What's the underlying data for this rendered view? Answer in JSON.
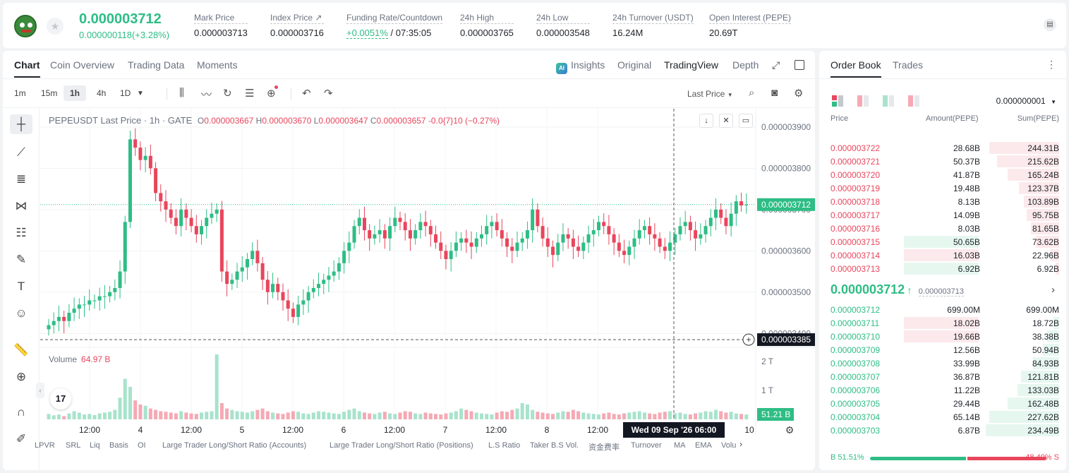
{
  "ticker": {
    "last_price": "0.000003712",
    "change": "0.000000118(+3.28%)",
    "stats": [
      {
        "label": "Mark Price",
        "value": "0.000003713"
      },
      {
        "label": "Index Price ↗",
        "value": "0.000003716"
      },
      {
        "label": "Funding Rate/Countdown",
        "value_green": "+0.0051%",
        "value": " / 07:35:05"
      },
      {
        "label": "24h High",
        "value": "0.000003765"
      },
      {
        "label": "24h Low",
        "value": "0.000003548"
      },
      {
        "label": "24h Turnover (USDT)",
        "value": "16.24M"
      },
      {
        "label": "Open Interest (PEPE)",
        "value": "20.69T"
      }
    ]
  },
  "chart_tabs": [
    "Chart",
    "Coin Overview",
    "Trading Data",
    "Moments"
  ],
  "view_options": {
    "insights": "Insights",
    "ai_badge": "AI",
    "original": "Original",
    "tradingview": "TradingView",
    "depth": "Depth"
  },
  "intervals": [
    "1m",
    "15m",
    "1h",
    "4h",
    "1D"
  ],
  "active_interval": "1h",
  "last_price_selector": "Last Price",
  "legend": {
    "symbol": "PEPEUSDT Last Price · 1h · GATE",
    "o_label": "O",
    "o": "0.000003667",
    "h_label": "H",
    "h": "0.000003670",
    "l_label": "L",
    "l": "0.000003647",
    "c_label": "C",
    "c": "0.000003657",
    "chg": "-0.0{7}10 (−0.27%)"
  },
  "volume_legend": {
    "label": "Volume",
    "value": "64.97 B"
  },
  "tv_logo": "17",
  "chart_data": {
    "type": "candlestick",
    "y_ticks": [
      "0.000003900",
      "0.000003800",
      "0.000003700",
      "0.000003600",
      "0.000003500",
      "0.000003400"
    ],
    "ylim": [
      3.38e-06,
      3.91e-06
    ],
    "x_ticks": [
      "12:00",
      "4",
      "12:00",
      "5",
      "12:00",
      "6",
      "12:00",
      "7",
      "12:00",
      "8",
      "12:00",
      "10"
    ],
    "last_price_label": "0.000003712",
    "last_price": 3.712e-06,
    "crosshair_price_label": "0.000003385",
    "crosshair_price": 3.385e-06,
    "crosshair_time": "Wed 09 Sep '26   06:00",
    "volume_ticks": [
      "2 T",
      "1 T"
    ],
    "volume_last_label": "51.21 B",
    "closes": [
      3.42,
      3.43,
      3.44,
      3.43,
      3.45,
      3.46,
      3.47,
      3.47,
      3.48,
      3.48,
      3.49,
      3.49,
      3.5,
      3.51,
      3.55,
      3.67,
      3.87,
      3.85,
      3.82,
      3.83,
      3.8,
      3.74,
      3.72,
      3.7,
      3.68,
      3.66,
      3.7,
      3.68,
      3.66,
      3.64,
      3.66,
      3.68,
      3.69,
      3.7,
      3.55,
      3.52,
      3.53,
      3.55,
      3.56,
      3.58,
      3.6,
      3.57,
      3.53,
      3.5,
      3.52,
      3.5,
      3.48,
      3.46,
      3.44,
      3.47,
      3.48,
      3.5,
      3.51,
      3.52,
      3.53,
      3.54,
      3.55,
      3.57,
      3.6,
      3.62,
      3.66,
      3.68,
      3.65,
      3.63,
      3.64,
      3.65,
      3.63,
      3.66,
      3.68,
      3.67,
      3.65,
      3.63,
      3.65,
      3.67,
      3.66,
      3.64,
      3.62,
      3.6,
      3.58,
      3.6,
      3.62,
      3.63,
      3.62,
      3.61,
      3.63,
      3.64,
      3.66,
      3.67,
      3.65,
      3.63,
      3.61,
      3.6,
      3.62,
      3.63,
      3.65,
      3.7,
      3.66,
      3.63,
      3.61,
      3.59,
      3.62,
      3.64,
      3.63,
      3.61,
      3.6,
      3.62,
      3.64,
      3.65,
      3.67,
      3.66,
      3.64,
      3.62,
      3.6,
      3.59,
      3.61,
      3.63,
      3.65,
      3.66,
      3.64,
      3.63,
      3.61,
      3.6,
      3.62,
      3.64,
      3.66,
      3.67,
      3.65,
      3.63,
      3.64,
      3.66,
      3.68,
      3.7,
      3.68,
      3.66,
      3.69,
      3.72,
      3.71,
      3.712
    ],
    "volumes": [
      20,
      15,
      18,
      12,
      22,
      30,
      25,
      18,
      20,
      16,
      22,
      25,
      28,
      35,
      80,
      150,
      120,
      70,
      55,
      50,
      40,
      35,
      30,
      28,
      25,
      22,
      30,
      25,
      22,
      20,
      25,
      28,
      30,
      240,
      60,
      40,
      35,
      30,
      28,
      25,
      30,
      35,
      40,
      30,
      25,
      22,
      20,
      25,
      30,
      28,
      22,
      20,
      25,
      30,
      28,
      25,
      22,
      20,
      28,
      35,
      40,
      30,
      25,
      22,
      20,
      25,
      28,
      22,
      20,
      25,
      30,
      28,
      22,
      20,
      25,
      22,
      20,
      18,
      22,
      25,
      30,
      40,
      35,
      30,
      25,
      22,
      20,
      18,
      25,
      30,
      28,
      35,
      40,
      60,
      55,
      35,
      28,
      25,
      22,
      20,
      25,
      30,
      28,
      35,
      30,
      25,
      22,
      20,
      18,
      22,
      25,
      20,
      18,
      22,
      25,
      28,
      30,
      25,
      22,
      20,
      25,
      28,
      30,
      22,
      25,
      20,
      18,
      22,
      25,
      30,
      28,
      35,
      30,
      25,
      28,
      22,
      20,
      18
    ]
  },
  "indicators": [
    "LPVR",
    "SRL",
    "Liq",
    "Basis",
    "OI",
    "Large Trader Long/Short Ratio (Accounts)",
    "Large Trader Long/Short Ratio (Positions)",
    "L.S Ratio",
    "Taker B.S Vol.",
    "资金费率",
    "Turnover",
    "MA",
    "EMA",
    "Volu"
  ],
  "orderbook": {
    "tabs": [
      "Order Book",
      "Trades"
    ],
    "precision": "0.000000001",
    "headers": {
      "price": "Price",
      "amount": "Amount(PEPE)",
      "sum": "Sum(PEPE)"
    },
    "asks": [
      {
        "price": "0.000003722",
        "amount": "28.68B",
        "sum": "244.31B",
        "depth": 0.95,
        "hl": 0
      },
      {
        "price": "0.000003721",
        "amount": "50.37B",
        "sum": "215.62B",
        "depth": 0.85,
        "hl": 0
      },
      {
        "price": "0.000003720",
        "amount": "41.87B",
        "sum": "165.24B",
        "depth": 0.7,
        "hl": 0
      },
      {
        "price": "0.000003719",
        "amount": "19.48B",
        "sum": "123.37B",
        "depth": 0.55,
        "hl": 0
      },
      {
        "price": "0.000003718",
        "amount": "8.13B",
        "sum": "103.89B",
        "depth": 0.48,
        "hl": 0
      },
      {
        "price": "0.000003717",
        "amount": "14.09B",
        "sum": "95.75B",
        "depth": 0.44,
        "hl": 0
      },
      {
        "price": "0.000003716",
        "amount": "8.03B",
        "sum": "81.65B",
        "depth": 0.38,
        "hl": 0
      },
      {
        "price": "0.000003715",
        "amount": "50.65B",
        "sum": "73.62B",
        "depth": 0.32,
        "hl": 1
      },
      {
        "price": "0.000003714",
        "amount": "16.03B",
        "sum": "22.96B",
        "depth": 0.12,
        "hl": 2
      },
      {
        "price": "0.000003713",
        "amount": "6.92B",
        "sum": "6.92B",
        "depth": 0.05,
        "hl": 1
      }
    ],
    "mid_price": "0.000003712",
    "mid_arrow": "↑",
    "mark_price": "0.000003713",
    "bids": [
      {
        "price": "0.000003712",
        "amount": "699.00M",
        "sum": "699.00M",
        "depth": 0.0,
        "hl": 0
      },
      {
        "price": "0.000003711",
        "amount": "18.02B",
        "sum": "18.72B",
        "depth": 0.08,
        "hl": 2
      },
      {
        "price": "0.000003710",
        "amount": "19.66B",
        "sum": "38.38B",
        "depth": 0.16,
        "hl": 2
      },
      {
        "price": "0.000003709",
        "amount": "12.56B",
        "sum": "50.94B",
        "depth": 0.22,
        "hl": 0
      },
      {
        "price": "0.000003708",
        "amount": "33.99B",
        "sum": "84.93B",
        "depth": 0.36,
        "hl": 0
      },
      {
        "price": "0.000003707",
        "amount": "36.87B",
        "sum": "121.81B",
        "depth": 0.52,
        "hl": 0
      },
      {
        "price": "0.000003706",
        "amount": "11.22B",
        "sum": "133.03B",
        "depth": 0.57,
        "hl": 0
      },
      {
        "price": "0.000003705",
        "amount": "29.44B",
        "sum": "162.48B",
        "depth": 0.7,
        "hl": 0
      },
      {
        "price": "0.000003704",
        "amount": "65.14B",
        "sum": "227.62B",
        "depth": 0.95,
        "hl": 0
      },
      {
        "price": "0.000003703",
        "amount": "6.87B",
        "sum": "234.49B",
        "depth": 1.0,
        "hl": 0
      }
    ],
    "buy_ratio_label": "B",
    "buy_ratio": "51.51%",
    "sell_ratio": "48.49%",
    "sell_ratio_label": "S",
    "buy_fraction": 0.5151
  },
  "colors": {
    "up": "#2ebd85",
    "down": "#e8465c",
    "up_vol": "#a8e3cc",
    "down_vol": "#f5a9b4"
  }
}
